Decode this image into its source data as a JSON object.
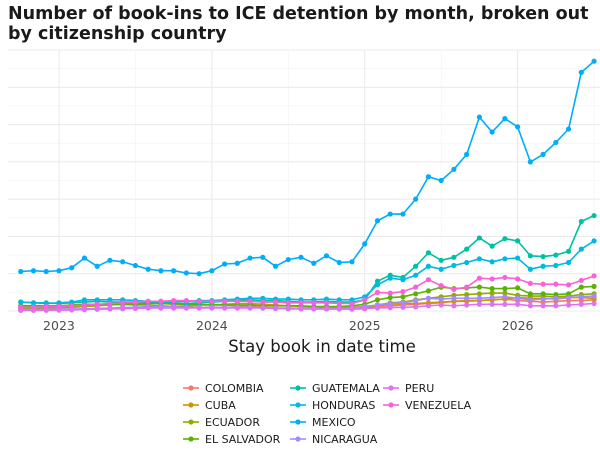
{
  "chart_data": {
    "type": "line",
    "title": "Number of book-ins to ICE detention by month, broken out by citizenship country",
    "xlabel": "Stay book in date time",
    "ylabel": "",
    "x_ticks": [
      "2023",
      "2024",
      "2025",
      "2026"
    ],
    "xlim": [
      "2022-09-01",
      "2026-07-15"
    ],
    "ylim": [
      0,
      35000
    ],
    "y_gridlines": [
      0,
      5000,
      10000,
      15000,
      20000,
      25000,
      30000,
      35000
    ],
    "y_tick_labels_visible": false,
    "grid": true,
    "legend_position": "bottom",
    "x": [
      "2022-10",
      "2022-11",
      "2022-12",
      "2023-01",
      "2023-02",
      "2023-03",
      "2023-04",
      "2023-05",
      "2023-06",
      "2023-07",
      "2023-08",
      "2023-09",
      "2023-10",
      "2023-11",
      "2023-12",
      "2024-01",
      "2024-02",
      "2024-03",
      "2024-04",
      "2024-05",
      "2024-06",
      "2024-07",
      "2024-08",
      "2024-09",
      "2024-10",
      "2024-11",
      "2024-12",
      "2025-01",
      "2025-02",
      "2025-03",
      "2025-04",
      "2025-05",
      "2025-06",
      "2025-07",
      "2025-08",
      "2025-09",
      "2025-10",
      "2025-11",
      "2025-12",
      "2026-01",
      "2026-02",
      "2026-03",
      "2026-04",
      "2026-05",
      "2026-06",
      "2026-07"
    ],
    "series": [
      {
        "name": "COLOMBIA",
        "color": "#F8766D",
        "values": [
          100,
          120,
          140,
          160,
          180,
          200,
          250,
          300,
          350,
          400,
          500,
          600,
          600,
          700,
          800,
          900,
          800,
          700,
          600,
          500,
          400,
          350,
          300,
          300,
          280,
          260,
          250,
          300,
          600,
          700,
          800,
          900,
          1000,
          1100,
          1300,
          1300,
          1400,
          1500,
          1600,
          1400,
          1300,
          1200,
          1300,
          1400,
          1400,
          1500
        ]
      },
      {
        "name": "CUBA",
        "color": "#D39200",
        "values": [
          400,
          400,
          450,
          500,
          600,
          700,
          800,
          900,
          1000,
          1100,
          1100,
          1000,
          900,
          900,
          800,
          800,
          900,
          1000,
          1000,
          900,
          800,
          700,
          600,
          500,
          500,
          500,
          500,
          600,
          800,
          900,
          1000,
          1000,
          1100,
          1200,
          1300,
          1400,
          1400,
          1500,
          1600,
          1800,
          1700,
          1700,
          1600,
          1800,
          1800,
          1700
        ]
      },
      {
        "name": "ECUADOR",
        "color": "#93AA00",
        "values": [
          300,
          350,
          400,
          450,
          500,
          600,
          700,
          800,
          900,
          800,
          800,
          700,
          600,
          600,
          500,
          500,
          500,
          500,
          500,
          400,
          350,
          300,
          300,
          300,
          300,
          300,
          300,
          400,
          800,
          1100,
          1200,
          1500,
          1700,
          1900,
          2100,
          2200,
          2300,
          2400,
          2400,
          2100,
          2000,
          2000,
          1900,
          2000,
          2200,
          2300
        ]
      },
      {
        "name": "EL SALVADOR",
        "color": "#5BB300",
        "values": [
          700,
          700,
          700,
          700,
          800,
          900,
          900,
          900,
          900,
          900,
          1000,
          1000,
          1000,
          900,
          900,
          800,
          800,
          800,
          800,
          700,
          700,
          700,
          700,
          600,
          600,
          600,
          700,
          900,
          1500,
          1800,
          1900,
          2300,
          2700,
          3200,
          3000,
          3100,
          3200,
          3000,
          3000,
          3100,
          2300,
          2300,
          2200,
          2300,
          3200,
          3300
        ]
      },
      {
        "name": "GUATEMALA",
        "color": "#00C19F",
        "values": [
          1200,
          1100,
          1100,
          1000,
          1100,
          1200,
          1300,
          1200,
          1200,
          1200,
          1200,
          1100,
          1100,
          1000,
          1100,
          1200,
          1300,
          1400,
          1500,
          1400,
          1400,
          1300,
          1200,
          1200,
          1300,
          1200,
          1200,
          1500,
          4000,
          4800,
          4500,
          6000,
          7800,
          6800,
          7200,
          8300,
          9800,
          8700,
          9700,
          9400,
          7400,
          7300,
          7500,
          8000,
          12000,
          12800
        ]
      },
      {
        "name": "HONDURAS",
        "color": "#00B9E3",
        "values": [
          1200,
          1100,
          1000,
          1100,
          1200,
          1500,
          1500,
          1500,
          1500,
          1400,
          1300,
          1300,
          1300,
          1300,
          1400,
          1400,
          1500,
          1600,
          1700,
          1700,
          1600,
          1600,
          1500,
          1500,
          1600,
          1500,
          1500,
          1900,
          3500,
          4400,
          4200,
          4800,
          6000,
          5600,
          6100,
          6500,
          7000,
          6600,
          7000,
          7100,
          5600,
          6000,
          6100,
          6500,
          8300,
          9400
        ]
      },
      {
        "name": "MEXICO",
        "color": "#00ADFA",
        "values": [
          5300,
          5400,
          5300,
          5400,
          5800,
          7100,
          6000,
          6800,
          6600,
          6100,
          5600,
          5400,
          5400,
          5100,
          5000,
          5400,
          6300,
          6400,
          7100,
          7200,
          6000,
          6900,
          7200,
          6400,
          7400,
          6500,
          6600,
          9000,
          12100,
          13000,
          13000,
          15000,
          18000,
          17500,
          19000,
          21000,
          26000,
          24000,
          25800,
          24700,
          20000,
          21000,
          22600,
          24400,
          32000,
          33500
        ]
      },
      {
        "name": "NICARAGUA",
        "color": "#A58AFF",
        "values": [
          200,
          200,
          200,
          250,
          250,
          300,
          350,
          400,
          450,
          500,
          600,
          600,
          600,
          500,
          500,
          500,
          500,
          500,
          500,
          450,
          400,
          400,
          350,
          350,
          350,
          350,
          400,
          600,
          800,
          1000,
          1100,
          1400,
          1700,
          1600,
          1700,
          1700,
          1700,
          1800,
          1900,
          1700,
          1500,
          1600,
          1700,
          1800,
          1900,
          2000
        ]
      },
      {
        "name": "PERU",
        "color": "#DF70F8",
        "values": [
          100,
          100,
          100,
          120,
          150,
          200,
          250,
          300,
          300,
          350,
          400,
          400,
          400,
          400,
          400,
          400,
          400,
          400,
          400,
          400,
          350,
          300,
          300,
          300,
          300,
          300,
          300,
          350,
          400,
          450,
          500,
          550,
          700,
          800,
          700,
          800,
          900,
          900,
          900,
          900,
          700,
          700,
          700,
          800,
          900,
          1000
        ]
      },
      {
        "name": "VENEZUELA",
        "color": "#FB61D7",
        "values": [
          500,
          500,
          600,
          600,
          700,
          800,
          900,
          1000,
          1100,
          1200,
          1300,
          1300,
          1400,
          1400,
          1300,
          1300,
          1300,
          1300,
          1300,
          1200,
          1200,
          1100,
          1100,
          1100,
          1100,
          1000,
          1000,
          1500,
          2500,
          2400,
          2600,
          3200,
          4200,
          3400,
          2900,
          3200,
          4400,
          4300,
          4500,
          4300,
          3700,
          3600,
          3600,
          3500,
          4100,
          4700
        ]
      }
    ]
  }
}
